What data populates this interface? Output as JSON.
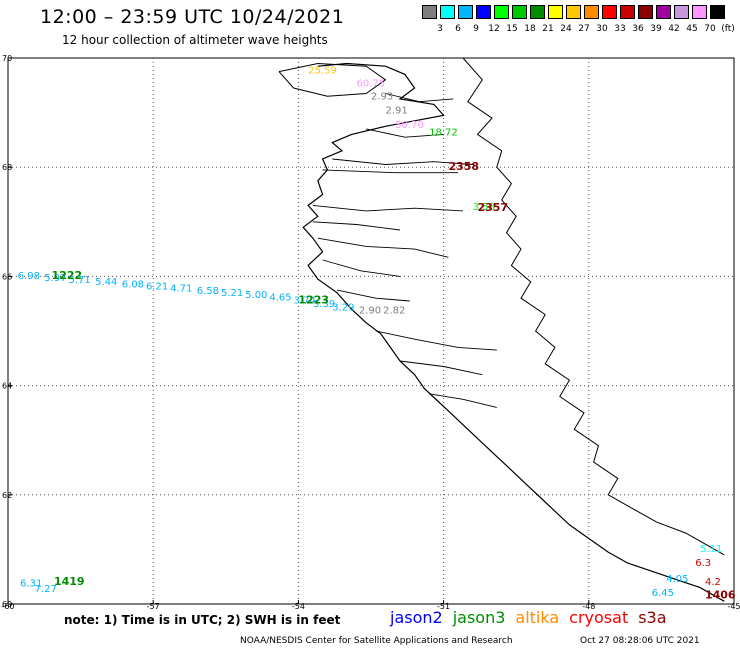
{
  "header": {
    "title": "12:00 – 23:59 UTC 10/24/2021",
    "subtitle": "12 hour collection of altimeter wave heights"
  },
  "colorbar": {
    "unit": "(ft)",
    "colors": [
      "#7f7f7f",
      "#00ffff",
      "#00b4ff",
      "#0000ff",
      "#00ff00",
      "#00c800",
      "#008c00",
      "#ffff00",
      "#ffc800",
      "#ff8c00",
      "#ff0000",
      "#c80000",
      "#8b0000",
      "#a000a0",
      "#c896dc",
      "#ff96ff",
      "#000000"
    ],
    "labels": [
      "3",
      "6",
      "9",
      "12",
      "15",
      "18",
      "21",
      "24",
      "27",
      "30",
      "33",
      "36",
      "39",
      "42",
      "45",
      "70"
    ]
  },
  "map": {
    "lon_range": [
      -60,
      -45
    ],
    "lat_range": [
      60,
      70
    ],
    "lon_ticks": [
      "-60",
      "-57",
      "-54",
      "-51",
      "-48",
      "-45"
    ],
    "lat_ticks": [
      "70",
      "68",
      "66",
      "64",
      "62",
      "60"
    ],
    "coast_color": "#000000",
    "grid_color": "#555555"
  },
  "tracks": {
    "labels": [
      {
        "text": "25.59",
        "lon": -53.8,
        "lat": 69.72,
        "color": "#ffc800"
      },
      {
        "text": "60.75",
        "lon": -52.8,
        "lat": 69.48,
        "color": "#ff96ff"
      },
      {
        "text": "2.93",
        "lon": -52.5,
        "lat": 69.24,
        "color": "#7f7f7f"
      },
      {
        "text": "2.91",
        "lon": -52.2,
        "lat": 68.98,
        "color": "#7f7f7f"
      },
      {
        "text": "50.70",
        "lon": -52.0,
        "lat": 68.72,
        "color": "#ff96ff"
      },
      {
        "text": "18.72",
        "lon": -51.3,
        "lat": 68.58,
        "color": "#00c800"
      },
      {
        "text": "3.58",
        "lon": -50.4,
        "lat": 67.22,
        "color": "#00ff00"
      },
      {
        "text": "6.98",
        "lon": -59.8,
        "lat": 65.95,
        "color": "#00b4ff"
      },
      {
        "text": "5.97",
        "lon": -59.25,
        "lat": 65.92,
        "color": "#00b4ff"
      },
      {
        "text": "5.71",
        "lon": -58.75,
        "lat": 65.88,
        "color": "#00b4ff"
      },
      {
        "text": "5.44",
        "lon": -58.2,
        "lat": 65.84,
        "color": "#00b4ff"
      },
      {
        "text": "6.08",
        "lon": -57.65,
        "lat": 65.8,
        "color": "#00b4ff"
      },
      {
        "text": "6.21",
        "lon": -57.15,
        "lat": 65.76,
        "color": "#00b4ff"
      },
      {
        "text": "4.71",
        "lon": -56.65,
        "lat": 65.72,
        "color": "#00b4ff"
      },
      {
        "text": "6.58",
        "lon": -56.1,
        "lat": 65.68,
        "color": "#00b4ff"
      },
      {
        "text": "5.21",
        "lon": -55.6,
        "lat": 65.64,
        "color": "#00b4ff"
      },
      {
        "text": "5.00",
        "lon": -55.1,
        "lat": 65.6,
        "color": "#00b4ff"
      },
      {
        "text": "4.65",
        "lon": -54.6,
        "lat": 65.56,
        "color": "#00b4ff"
      },
      {
        "text": "3.74",
        "lon": -54.1,
        "lat": 65.5,
        "color": "#00b4ff"
      },
      {
        "text": "3.39",
        "lon": -53.7,
        "lat": 65.44,
        "color": "#00b4ff"
      },
      {
        "text": "3.29",
        "lon": -53.3,
        "lat": 65.38,
        "color": "#00b4ff"
      },
      {
        "text": "2.90",
        "lon": -52.75,
        "lat": 65.32,
        "color": "#7f7f7f"
      },
      {
        "text": "2.82",
        "lon": -52.25,
        "lat": 65.32,
        "color": "#7f7f7f"
      },
      {
        "text": "6.31",
        "lon": -59.75,
        "lat": 60.32,
        "color": "#00b4ff"
      },
      {
        "text": "7.27",
        "lon": -59.45,
        "lat": 60.22,
        "color": "#00b4ff"
      },
      {
        "text": "4.05",
        "lon": -46.4,
        "lat": 60.4,
        "color": "#00b4ff"
      },
      {
        "text": "6.45",
        "lon": -46.7,
        "lat": 60.15,
        "color": "#00b4ff"
      },
      {
        "text": "5.11",
        "lon": -45.7,
        "lat": 60.95,
        "color": "#00ffff"
      },
      {
        "text": "6.3",
        "lon": -45.8,
        "lat": 60.7,
        "color": "#c80000"
      },
      {
        "text": "4.2",
        "lon": -45.6,
        "lat": 60.35,
        "color": "#c80000"
      }
    ],
    "pass_ids": [
      {
        "text": "2358",
        "lon": -50.9,
        "lat": 67.95,
        "color": "#8b0000"
      },
      {
        "text": "2357",
        "lon": -50.3,
        "lat": 67.2,
        "color": "#8b0000"
      },
      {
        "text": "1222",
        "lon": -59.1,
        "lat": 65.95,
        "color": "#008c00"
      },
      {
        "text": "1223",
        "lon": -54.0,
        "lat": 65.5,
        "color": "#008c00"
      },
      {
        "text": "1419",
        "lon": -59.05,
        "lat": 60.35,
        "color": "#008c00"
      },
      {
        "text": "1406",
        "lon": -45.6,
        "lat": 60.1,
        "color": "#8b0000"
      }
    ]
  },
  "footer": {
    "note": "note:  1) Time is in UTC;  2) SWH is in feet",
    "legend": [
      {
        "name": "jason2",
        "color": "#0000ff"
      },
      {
        "name": "jason3",
        "color": "#008c00"
      },
      {
        "name": "altika",
        "color": "#ff8c00"
      },
      {
        "name": "cryosat",
        "color": "#ff0000"
      },
      {
        "name": "s3a",
        "color": "#8b0000"
      }
    ],
    "credit": "NOAA/NESDIS Center for Satellite Applications and Research",
    "generated": "Oct 27 08:28:06 UTC 2021"
  }
}
